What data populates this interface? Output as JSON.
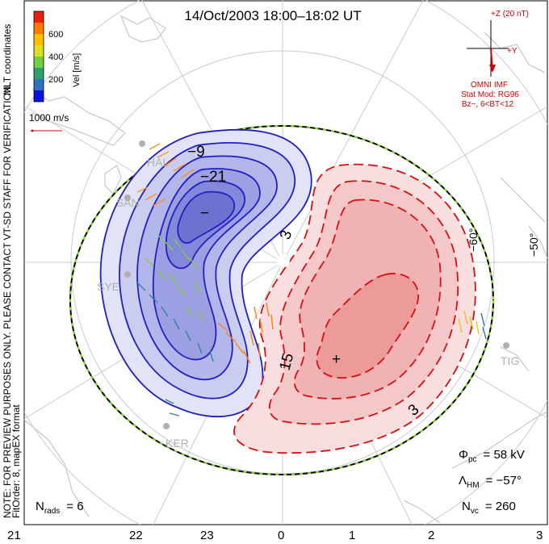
{
  "title": "14/Oct/2003 18:00–18:02 UT",
  "side_note": {
    "line1": "NOTE: FOR PREVIEW PURPOSES ONLY. PLEASE CONTACT VT-SD STAFF FOR VERIFICATION.",
    "line2": "FitOrder: 8, mapEX format"
  },
  "coord_label": "MLT coordinates",
  "color_bar": {
    "label": "Vel [m/s]",
    "ticks": [
      "600",
      "400",
      "200"
    ],
    "colors": [
      "#e8200c",
      "#ff7a00",
      "#ffc000",
      "#d8e020",
      "#70d040",
      "#30a070",
      "#3070c0",
      "#1010e0"
    ]
  },
  "vector_scale": "1000 m/s",
  "imf": {
    "z_label": "+Z (20 nT)",
    "y_label": "+Y",
    "source": "OMNI IMF",
    "model": "Stat Mod: RG96",
    "condition": "Bz−, 6<BT<12"
  },
  "stats": {
    "phi_pc_symbol": "Φ",
    "phi_pc_sub": "pc",
    "phi_pc_value": "= 58 kV",
    "lambda_hm_symbol": "Λ",
    "lambda_hm_sub": "HM",
    "lambda_hm_value": "= −57°",
    "n_vc_symbol": "N",
    "n_vc_sub": "vc",
    "n_vc_value": "= 260",
    "n_rads_symbol": "N",
    "n_rads_sub": "rads",
    "n_rads_value": "= 6"
  },
  "contour_labels": [
    "−9",
    "−21",
    "−",
    "3",
    "15",
    "3",
    "+"
  ],
  "latitude_labels": [
    "−60°",
    "−50°"
  ],
  "sites": [
    "HAL",
    "SAN",
    "SYE",
    "KER",
    "TIG"
  ],
  "mlt_labels": [
    "21",
    "22",
    "23",
    "0",
    "1",
    "2",
    "3"
  ],
  "colors": {
    "negative_cell": "#2020c0",
    "positive_cell": "#d41010",
    "coastline": "#c8ccd0",
    "hmb_outer": "#000000",
    "hmb_inner": "#80e020"
  }
}
